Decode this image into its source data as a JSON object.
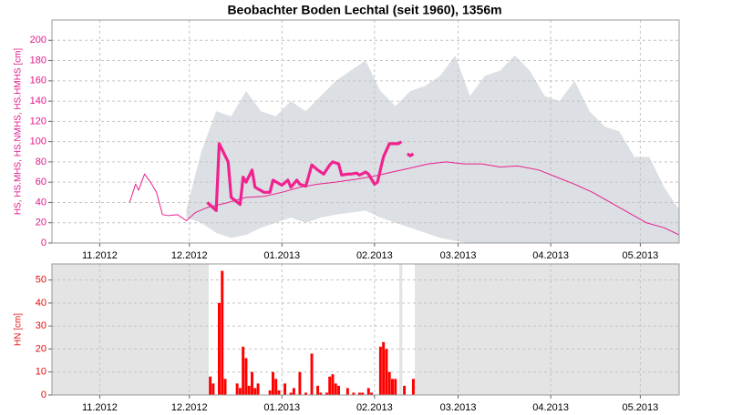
{
  "chart_data": [
    {
      "type": "line",
      "title": "Beobachter Boden Lechtal (seit 1960), 1356m",
      "ylabel": "HS, HS.MHS, HS.NMHS, HS.HMHS [cm]",
      "label_color": "#e0188c",
      "xlim": [
        0,
        210
      ],
      "ylim": [
        0,
        220
      ],
      "xticks": [
        {
          "value": 16,
          "label": "11.2012"
        },
        {
          "value": 46,
          "label": "12.2012"
        },
        {
          "value": 77,
          "label": "01.2013"
        },
        {
          "value": 108,
          "label": "02.2013"
        },
        {
          "value": 136,
          "label": "03.2013"
        },
        {
          "value": 167,
          "label": "04.2013"
        },
        {
          "value": 197,
          "label": "05.2013"
        }
      ],
      "yticks": [
        0,
        20,
        40,
        60,
        80,
        100,
        120,
        140,
        160,
        180,
        200
      ],
      "grid": true,
      "band": {
        "color": "#dcdfe3",
        "x": [
          45,
          50,
          55,
          60,
          65,
          70,
          75,
          80,
          85,
          90,
          95,
          100,
          105,
          110,
          115,
          120,
          125,
          130,
          135,
          140,
          145,
          150,
          155,
          160,
          165,
          170,
          175,
          180,
          185,
          190,
          195,
          200,
          205,
          210
        ],
        "upper": [
          33,
          90,
          130,
          125,
          150,
          130,
          125,
          140,
          130,
          145,
          160,
          170,
          180,
          150,
          135,
          150,
          155,
          165,
          185,
          145,
          165,
          170,
          185,
          170,
          145,
          140,
          160,
          130,
          115,
          110,
          85,
          85,
          55,
          33
        ],
        "lower": [
          25,
          20,
          10,
          5,
          8,
          15,
          20,
          25,
          20,
          25,
          28,
          30,
          32,
          25,
          20,
          15,
          10,
          5,
          2,
          0,
          0,
          0,
          0,
          0,
          0,
          0,
          0,
          0,
          0,
          0,
          0,
          0,
          0,
          0
        ]
      },
      "series": [
        {
          "color": "#e8208f",
          "width": 1,
          "x": [
            26,
            28,
            29,
            31,
            33,
            35,
            37,
            39,
            42,
            45,
            48,
            52,
            59,
            65,
            71,
            77,
            83,
            89,
            95,
            102,
            108,
            114,
            120,
            126,
            132,
            138,
            144,
            150,
            156,
            163,
            169,
            175,
            181,
            187,
            193,
            199,
            205,
            210
          ],
          "values": [
            40,
            58,
            52,
            68,
            60,
            50,
            28,
            27,
            28,
            22,
            30,
            35,
            40,
            45,
            46,
            50,
            55,
            58,
            60,
            63,
            66,
            70,
            74,
            78,
            80,
            78,
            78,
            75,
            76,
            72,
            65,
            58,
            50,
            40,
            30,
            20,
            15,
            8
          ]
        },
        {
          "color": "#f0228f",
          "width": 3.2,
          "x": [
            52,
            55,
            56,
            59,
            60,
            63,
            64,
            65,
            67,
            68,
            71,
            73,
            74,
            77,
            79,
            80,
            82,
            83,
            85,
            87,
            89,
            91,
            93,
            94,
            96,
            97,
            99,
            100,
            102,
            103,
            105,
            106,
            108,
            109,
            111,
            113,
            116,
            117,
            118,
            119,
            120,
            121
          ],
          "values": [
            40,
            32,
            98,
            80,
            45,
            38,
            65,
            60,
            72,
            55,
            50,
            50,
            62,
            57,
            62,
            55,
            62,
            58,
            56,
            77,
            72,
            68,
            77,
            80,
            78,
            67,
            68,
            68,
            69,
            67,
            70,
            68,
            58,
            60,
            85,
            98,
            98,
            100,
            null,
            88,
            86,
            88
          ]
        }
      ]
    },
    {
      "type": "bar",
      "ylabel": "HN [cm]",
      "label_color": "#e01010",
      "color": "#ff0000",
      "xlim": [
        0,
        210
      ],
      "ylim": [
        0,
        57
      ],
      "xticks": [
        {
          "value": 16,
          "label": "11.2012"
        },
        {
          "value": 46,
          "label": "12.2012"
        },
        {
          "value": 77,
          "label": "01.2013"
        },
        {
          "value": 108,
          "label": "02.2013"
        },
        {
          "value": 136,
          "label": "03.2013"
        },
        {
          "value": 167,
          "label": "04.2013"
        },
        {
          "value": 197,
          "label": "05.2013"
        }
      ],
      "yticks": [
        0,
        10,
        20,
        30,
        40,
        50
      ],
      "grid": true,
      "shaded": [
        [
          0,
          52.5
        ],
        [
          116.3,
          117.3
        ],
        [
          121.5,
          210
        ]
      ],
      "shade_color": "#e4e4e4",
      "x": [
        53,
        54,
        56,
        57,
        58,
        62,
        63,
        64,
        65,
        66,
        67,
        68,
        69,
        73,
        74,
        75,
        76,
        78,
        80,
        81,
        83,
        85,
        87,
        89,
        90,
        92,
        93,
        94,
        95,
        96,
        99,
        101,
        103,
        104,
        106,
        107,
        110,
        111,
        112,
        113,
        114,
        115,
        118,
        121
      ],
      "values": [
        8,
        5,
        40,
        54,
        7,
        5,
        3,
        21,
        16,
        4,
        10,
        3,
        5,
        2,
        10,
        7,
        2,
        5,
        1,
        3,
        10,
        1,
        18,
        4,
        1,
        1,
        8,
        9,
        5,
        4,
        3,
        1,
        1,
        1,
        3,
        1,
        21,
        23,
        20,
        10,
        7,
        7,
        4,
        7
      ]
    }
  ]
}
